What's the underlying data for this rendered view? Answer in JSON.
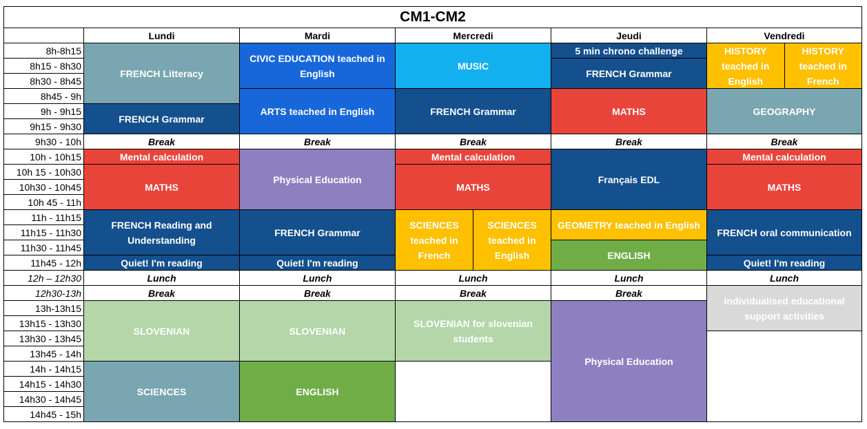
{
  "title": "CM1-CM2",
  "days": [
    "Lundi",
    "Mardi",
    "Mercredi",
    "Jeudi",
    "Vendredi"
  ],
  "times": [
    "8h-8h15",
    "8h15 - 8h30",
    "8h30 - 8h45",
    "8h45 - 9h",
    "9h - 9h15",
    "9h15 - 9h30",
    "9h30 - 10h",
    "10h - 10h15",
    "10h 15 - 10h30",
    "10h30 - 10h45",
    "10h 45 - 11h",
    "11h - 11h15",
    "11h15 - 11h30",
    "11h30 - 11h45",
    "11h45 - 12h",
    "12h – 12h30",
    "12h30-13h",
    "13h-13h15",
    "13h15 - 13h30",
    "13h30 - 13h45",
    "13h45 - 14h",
    "14h - 14h15",
    "14h15 - 14h30",
    "14h30 - 14h45",
    "14h45 - 15h"
  ],
  "colors": {
    "teal": "#7AA6B1",
    "navy": "#144F8E",
    "royal": "#1767DA",
    "sky": "#13B0EF",
    "yellow": "#FFC000",
    "red": "#E9443A",
    "purple": "#8E7FC1",
    "green": "#70AD47",
    "lightgreen": "#B4D6A9",
    "grey": "#D9D9D9",
    "white": "#FFFFFF"
  },
  "labels": {
    "break": "Break",
    "lunch": "Lunch",
    "french_litteracy": "FRENCH Litteracy",
    "french_grammar": "FRENCH Grammar",
    "civic_english": "CIVIC EDUCATION teached in English",
    "arts_english": "ARTS teached in English",
    "music": "MUSIC",
    "chrono": "5 min chrono challenge",
    "maths": "MATHS",
    "history_english": "HISTORY teached in English",
    "history_french": "HISTORY teached in French",
    "geography": "GEOGRAPHY",
    "mental_calculation": "Mental calculation",
    "physical_education": "Physical Education",
    "francais_edl": "Français EDL",
    "french_reading": "FRENCH Reading and Understanding",
    "sciences_french": "SCIENCES teached in French",
    "sciences_english": "SCIENCES teached in English",
    "geometry_english": "GEOMETRY teached in English",
    "french_oral": "FRENCH oral communication",
    "english": "ENGLISH",
    "quiet_reading": "Quiet! I'm reading",
    "slovenian": "SLOVENIAN",
    "slovenian_students": "SLOVENIAN for slovenian students",
    "individualised": "Individualised educational support activities",
    "sciences": "SCIENCES"
  }
}
